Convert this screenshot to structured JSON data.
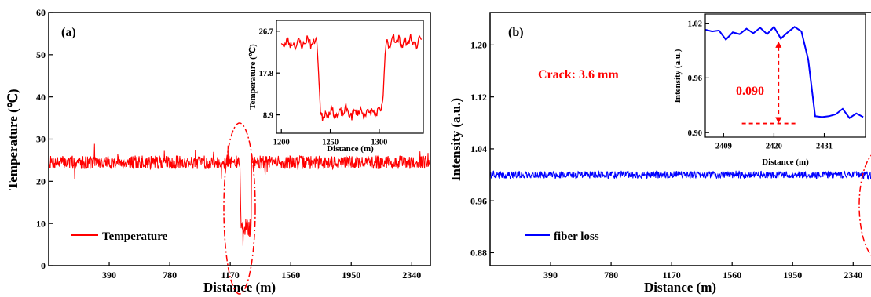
{
  "chart_data": [
    {
      "panel_label": "(a)",
      "type": "line",
      "xlabel": "Distance (m)",
      "ylabel": "Temperature (℃)",
      "xlim": [
        0,
        2460
      ],
      "ylim": [
        0,
        60
      ],
      "xticks": [
        390,
        780,
        1170,
        1560,
        1950,
        2340
      ],
      "yticks": [
        0,
        10,
        20,
        30,
        40,
        50,
        60
      ],
      "legend_position": "bottom-left",
      "annotation": "dash-dot ellipse around the cooled section near 1170–1270 m",
      "series": [
        {
          "name": "Temperature",
          "color": "#ff0000",
          "baseline_mean": 24.5,
          "noise_range": [
            21,
            28
          ],
          "dip": {
            "x_start": 1240,
            "x_end": 1307,
            "value": 8.9
          }
        }
      ],
      "inset": {
        "xlabel": "Distance (m)",
        "ylabel": "Temperature (℃)",
        "xlim": [
          1195,
          1345
        ],
        "ylim": [
          5,
          29
        ],
        "xticks": [
          1200,
          1250,
          1300
        ],
        "yticks": [
          8.9,
          17.8,
          26.7
        ],
        "points": {
          "x": [
            1200,
            1203,
            1206,
            1209,
            1212,
            1215,
            1218,
            1221,
            1224,
            1227,
            1230,
            1233,
            1236,
            1238,
            1240,
            1242,
            1245,
            1248,
            1251,
            1254,
            1257,
            1260,
            1263,
            1266,
            1269,
            1272,
            1275,
            1278,
            1281,
            1284,
            1287,
            1290,
            1293,
            1296,
            1299,
            1302,
            1304,
            1306,
            1308,
            1311,
            1314,
            1317,
            1320,
            1323,
            1326,
            1329,
            1332,
            1335,
            1338,
            1341,
            1344
          ],
          "y": [
            24.5,
            23.1,
            25.0,
            23.8,
            24.2,
            23.4,
            24.8,
            23.6,
            24.0,
            25.6,
            23.7,
            24.3,
            25.4,
            18.0,
            9.5,
            8.3,
            9.4,
            8.9,
            10.2,
            9.1,
            8.6,
            9.7,
            9.0,
            10.5,
            9.2,
            8.5,
            9.8,
            9.3,
            10.1,
            8.8,
            9.6,
            9.2,
            9.9,
            8.7,
            10.0,
            9.6,
            13.0,
            22.0,
            24.6,
            23.2,
            26.4,
            24.0,
            25.2,
            23.5,
            24.8,
            23.9,
            25.5,
            24.1,
            23.6,
            24.9,
            24.2
          ]
        }
      }
    },
    {
      "panel_label": "(b)",
      "type": "line",
      "xlabel": "Distance (m)",
      "ylabel": "Intensity (a.u.)",
      "xlim": [
        0,
        2460
      ],
      "ylim": [
        0.86,
        1.25
      ],
      "xticks": [
        390,
        780,
        1170,
        1560,
        1950,
        2340
      ],
      "yticks": [
        0.88,
        0.96,
        1.04,
        1.12,
        1.2
      ],
      "legend_position": "bottom-left",
      "text_annotation": "Crack:  3.6 mm",
      "annotation": "dash-dot ellipse at the right edge near 2420 m",
      "series": [
        {
          "name": "fiber loss",
          "color": "#0000ff",
          "baseline_mean": 1.0,
          "noise_range": [
            0.992,
            1.01
          ]
        }
      ],
      "inset": {
        "xlabel": "Distance (m)",
        "ylabel": "Intensity (a.u.)",
        "xlim": [
          2405,
          2440
        ],
        "ylim": [
          0.895,
          1.03
        ],
        "xticks": [
          2409,
          2420,
          2431
        ],
        "yticks": [
          0.9,
          0.96,
          1.02
        ],
        "drop_label": "0.090",
        "drop_from": 1.0,
        "drop_to": 0.91,
        "points": {
          "x": [
            2405,
            2406.5,
            2408,
            2409.5,
            2411,
            2412.5,
            2414,
            2415.5,
            2417,
            2418.5,
            2420,
            2421.5,
            2423,
            2424.5,
            2426,
            2427.5,
            2429,
            2430.5,
            2432,
            2433.5,
            2435,
            2436.5,
            2438,
            2439.5
          ],
          "y": [
            1.013,
            1.011,
            1.012,
            1.002,
            1.01,
            1.008,
            1.014,
            1.009,
            1.015,
            1.008,
            1.016,
            1.003,
            1.01,
            1.016,
            1.011,
            0.98,
            0.918,
            0.917,
            0.918,
            0.92,
            0.926,
            0.916,
            0.921,
            0.917
          ]
        }
      }
    }
  ]
}
